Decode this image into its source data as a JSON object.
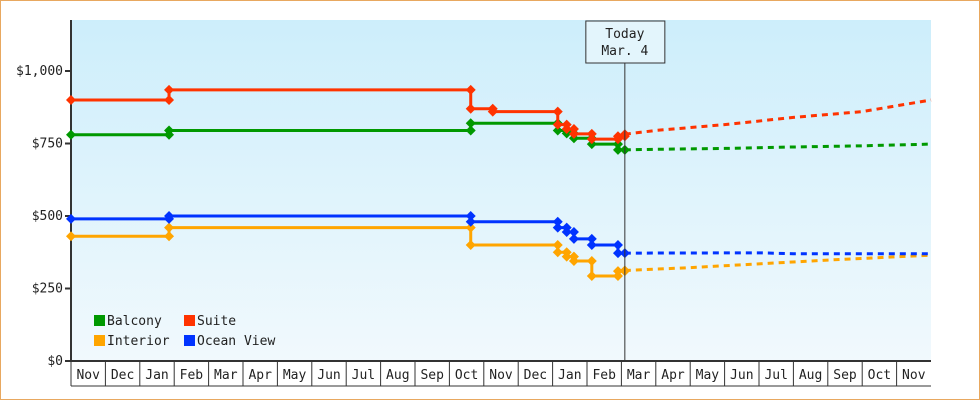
{
  "chart_data": {
    "type": "line",
    "title": "",
    "xlabel": "",
    "ylabel": "",
    "x_unit": "months since start of first Nov",
    "xlim": [
      0,
      25
    ],
    "ylim": [
      0,
      1000
    ],
    "y_ticks": [
      0,
      250,
      500,
      750,
      1000
    ],
    "y_tick_labels": [
      "$0",
      "$250",
      "$500",
      "$750",
      "$1,000"
    ],
    "month_labels": [
      "Nov",
      "Dec",
      "Jan",
      "Feb",
      "Mar",
      "Apr",
      "May",
      "Jun",
      "Jul",
      "Aug",
      "Sep",
      "Oct",
      "Nov",
      "Dec",
      "Jan",
      "Feb",
      "Mar",
      "Apr",
      "May",
      "Jun",
      "Jul",
      "Aug",
      "Sep",
      "Oct",
      "Nov"
    ],
    "today": {
      "x": 16.1,
      "label_line1": "Today",
      "label_line2": "Mar. 4"
    },
    "legend_placement": "bottom-left",
    "series": [
      {
        "name": "Balcony",
        "color": "#009900",
        "history": [
          [
            0,
            780
          ],
          [
            2.85,
            795
          ],
          [
            11.62,
            820
          ],
          [
            14.15,
            795
          ],
          [
            14.41,
            785
          ],
          [
            14.62,
            768
          ],
          [
            15.14,
            748
          ],
          [
            15.9,
            728
          ],
          [
            16.1,
            728
          ]
        ],
        "forecast": [
          [
            16.1,
            728
          ],
          [
            17,
            730
          ],
          [
            19,
            733
          ],
          [
            21,
            738
          ],
          [
            23,
            742
          ],
          [
            25,
            748
          ]
        ]
      },
      {
        "name": "Suite",
        "color": "#ff3300",
        "history": [
          [
            0,
            900
          ],
          [
            2.85,
            935
          ],
          [
            11.62,
            870
          ],
          [
            12.26,
            860
          ],
          [
            14.15,
            815
          ],
          [
            14.41,
            800
          ],
          [
            14.62,
            783
          ],
          [
            15.14,
            765
          ],
          [
            15.9,
            775
          ],
          [
            16.1,
            782
          ]
        ],
        "forecast": [
          [
            16.1,
            782
          ],
          [
            17,
            795
          ],
          [
            19,
            815
          ],
          [
            21,
            840
          ],
          [
            23,
            860
          ],
          [
            25,
            900
          ]
        ]
      },
      {
        "name": "Interior",
        "color": "#ffa500",
        "history": [
          [
            0,
            430
          ],
          [
            2.85,
            460
          ],
          [
            11.62,
            400
          ],
          [
            14.15,
            375
          ],
          [
            14.41,
            360
          ],
          [
            14.62,
            345
          ],
          [
            15.14,
            293
          ],
          [
            15.9,
            310
          ],
          [
            16.1,
            312
          ]
        ],
        "forecast": [
          [
            16.1,
            312
          ],
          [
            18,
            322
          ],
          [
            20,
            335
          ],
          [
            22,
            348
          ],
          [
            25,
            365
          ]
        ]
      },
      {
        "name": "Ocean View",
        "color": "#0033ff",
        "history": [
          [
            0,
            490
          ],
          [
            2.85,
            500
          ],
          [
            11.62,
            480
          ],
          [
            14.15,
            460
          ],
          [
            14.41,
            445
          ],
          [
            14.62,
            421
          ],
          [
            15.14,
            400
          ],
          [
            15.9,
            372
          ],
          [
            16.1,
            372
          ]
        ],
        "forecast": [
          [
            16.1,
            372
          ],
          [
            20,
            373
          ],
          [
            21,
            370
          ],
          [
            25,
            370
          ]
        ]
      }
    ]
  }
}
